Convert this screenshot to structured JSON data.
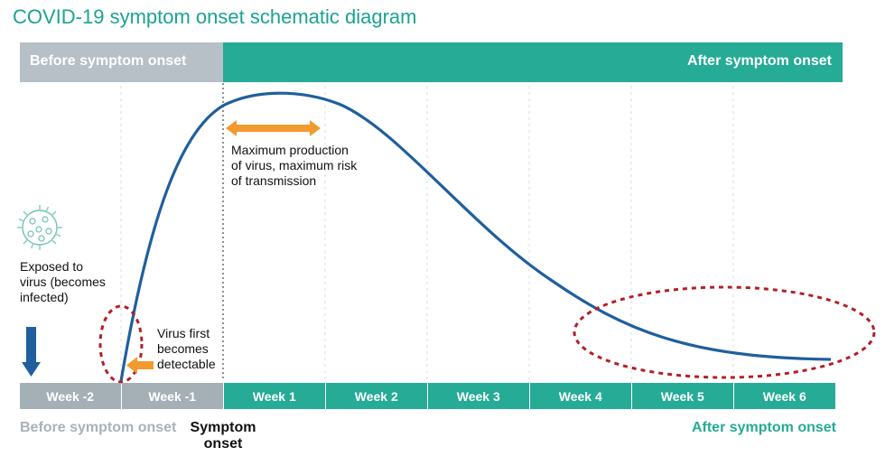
{
  "title": "COVID-19 symptom onset schematic diagram",
  "bands": {
    "before": "Before symptom onset",
    "after": "After symptom onset"
  },
  "notes": {
    "exposed": "Exposed to virus (becomes infected)",
    "detectable": "Virus first becomes detectable",
    "maximum": "Maximum production of virus, maximum risk of transmission"
  },
  "weeks": [
    {
      "label": "Week -2",
      "phase": "before"
    },
    {
      "label": "Week -1",
      "phase": "before"
    },
    {
      "label": "Week 1",
      "phase": "after"
    },
    {
      "label": "Week 2",
      "phase": "after"
    },
    {
      "label": "Week 3",
      "phase": "after"
    },
    {
      "label": "Week 4",
      "phase": "after"
    },
    {
      "label": "Week 5",
      "phase": "after"
    },
    {
      "label": "Week 6",
      "phase": "after"
    }
  ],
  "bottom": {
    "before": "Before symptom onset",
    "onset": "Symptom onset",
    "after": "After symptom onset"
  },
  "colors": {
    "title": "#1aa391",
    "before_band": "#b6c0c6",
    "after_band": "#25ab96",
    "week_before": "#a4b0b6",
    "week_after": "#25ab96",
    "curve": "#1f5f9e",
    "arrow_orange": "#f29a2e",
    "circle_red": "#b0202a",
    "down_arrow": "#1f5f9e"
  },
  "icons": {
    "virus": "virus-icon",
    "down_arrow": "down-arrow-icon",
    "double_arrow": "double-arrow-icon",
    "left_arrow": "left-arrow-icon"
  }
}
